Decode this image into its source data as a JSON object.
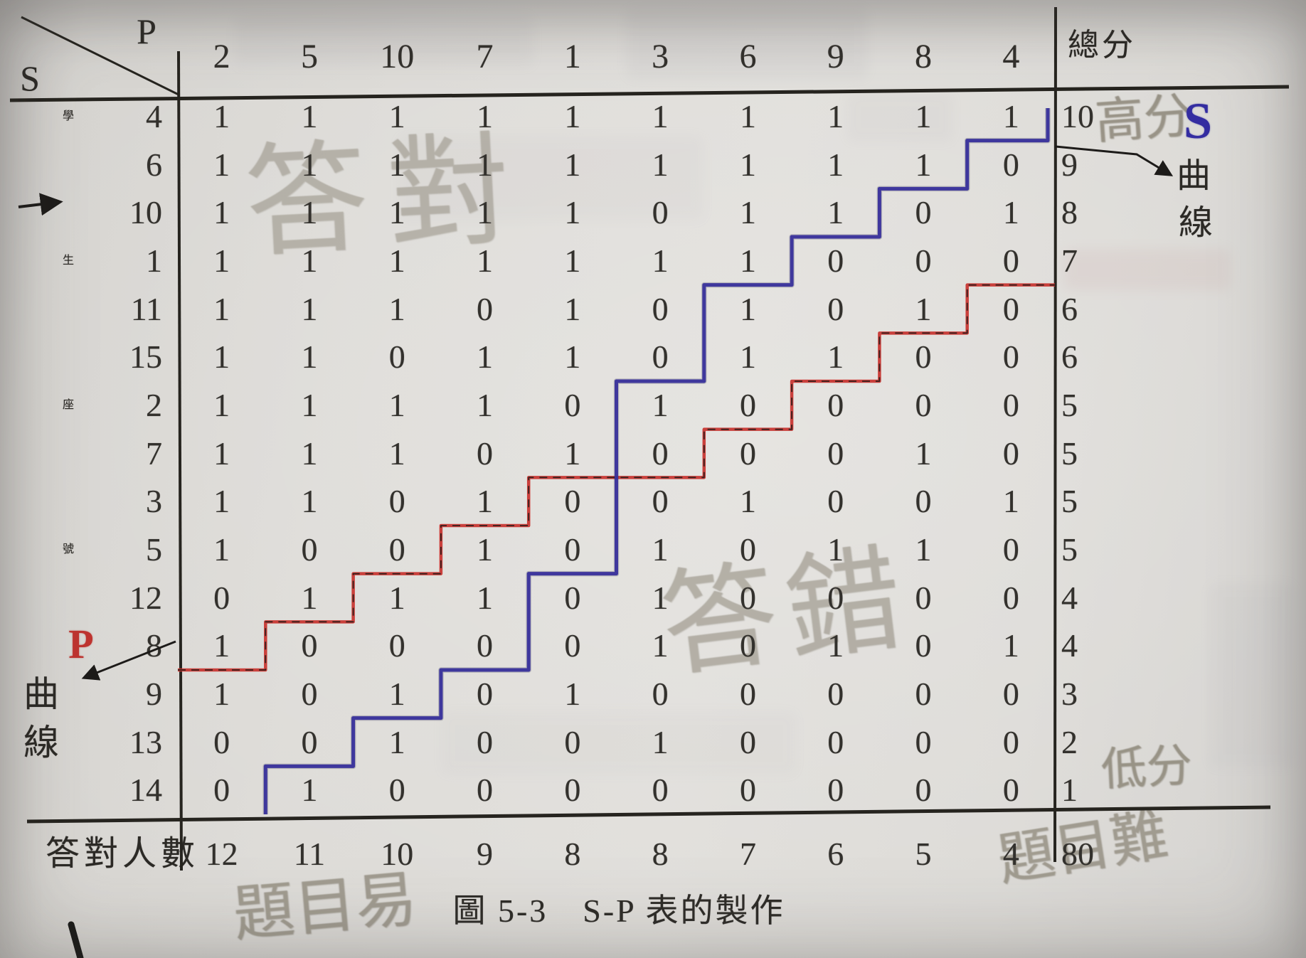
{
  "page": {
    "caption": "圖 5-3　S-P 表的製作",
    "corner": {
      "p": "P",
      "s": "S"
    },
    "problems": [
      "2",
      "5",
      "10",
      "7",
      "1",
      "3",
      "6",
      "9",
      "8",
      "4"
    ],
    "total_col_header": "總分",
    "students": [
      "4",
      "6",
      "10",
      "1",
      "11",
      "15",
      "2",
      "7",
      "3",
      "5",
      "12",
      "8",
      "9",
      "13",
      "14"
    ],
    "matrix": [
      [
        1,
        1,
        1,
        1,
        1,
        1,
        1,
        1,
        1,
        1
      ],
      [
        1,
        1,
        1,
        1,
        1,
        1,
        1,
        1,
        1,
        0
      ],
      [
        1,
        1,
        1,
        1,
        1,
        0,
        1,
        1,
        0,
        1
      ],
      [
        1,
        1,
        1,
        1,
        1,
        1,
        1,
        0,
        0,
        0
      ],
      [
        1,
        1,
        1,
        0,
        1,
        0,
        1,
        0,
        1,
        0
      ],
      [
        1,
        1,
        0,
        1,
        1,
        0,
        1,
        1,
        0,
        0
      ],
      [
        1,
        1,
        1,
        1,
        0,
        1,
        0,
        0,
        0,
        0
      ],
      [
        1,
        1,
        1,
        0,
        1,
        0,
        0,
        0,
        1,
        0
      ],
      [
        1,
        1,
        0,
        1,
        0,
        0,
        1,
        0,
        0,
        1
      ],
      [
        1,
        0,
        0,
        1,
        0,
        1,
        0,
        1,
        1,
        0
      ],
      [
        0,
        1,
        1,
        1,
        0,
        1,
        0,
        0,
        0,
        0
      ],
      [
        1,
        0,
        0,
        0,
        0,
        1,
        0,
        1,
        0,
        1
      ],
      [
        1,
        0,
        1,
        0,
        1,
        0,
        0,
        0,
        0,
        0
      ],
      [
        0,
        0,
        1,
        0,
        0,
        1,
        0,
        0,
        0,
        0
      ],
      [
        0,
        1,
        0,
        0,
        0,
        0,
        0,
        0,
        0,
        0
      ]
    ],
    "row_totals": [
      10,
      9,
      8,
      7,
      6,
      6,
      5,
      5,
      5,
      5,
      4,
      4,
      3,
      2,
      1
    ],
    "footer_label": "答對人數",
    "col_counts": [
      12,
      11,
      10,
      9,
      8,
      8,
      7,
      6,
      5,
      4
    ],
    "grand_total": "80",
    "left_axis_chars": [
      "學",
      "生",
      "座",
      "號"
    ],
    "p_curve_label": {
      "p": "P",
      "char1": "曲",
      "char2": "線"
    },
    "s_curve_label": {
      "s": "S",
      "char1": "曲",
      "char2": "線"
    },
    "pencil_notes": {
      "correct": "答對",
      "wrong": "答錯",
      "high": "高分",
      "low": "低分",
      "easy": "題目易",
      "hard": "題目難"
    },
    "colors": {
      "s_curve": "#38309b",
      "p_curve": "#c8322e",
      "ink": "#26241f",
      "pencil": "#8d8779",
      "paper": "#dbd9d5"
    }
  }
}
